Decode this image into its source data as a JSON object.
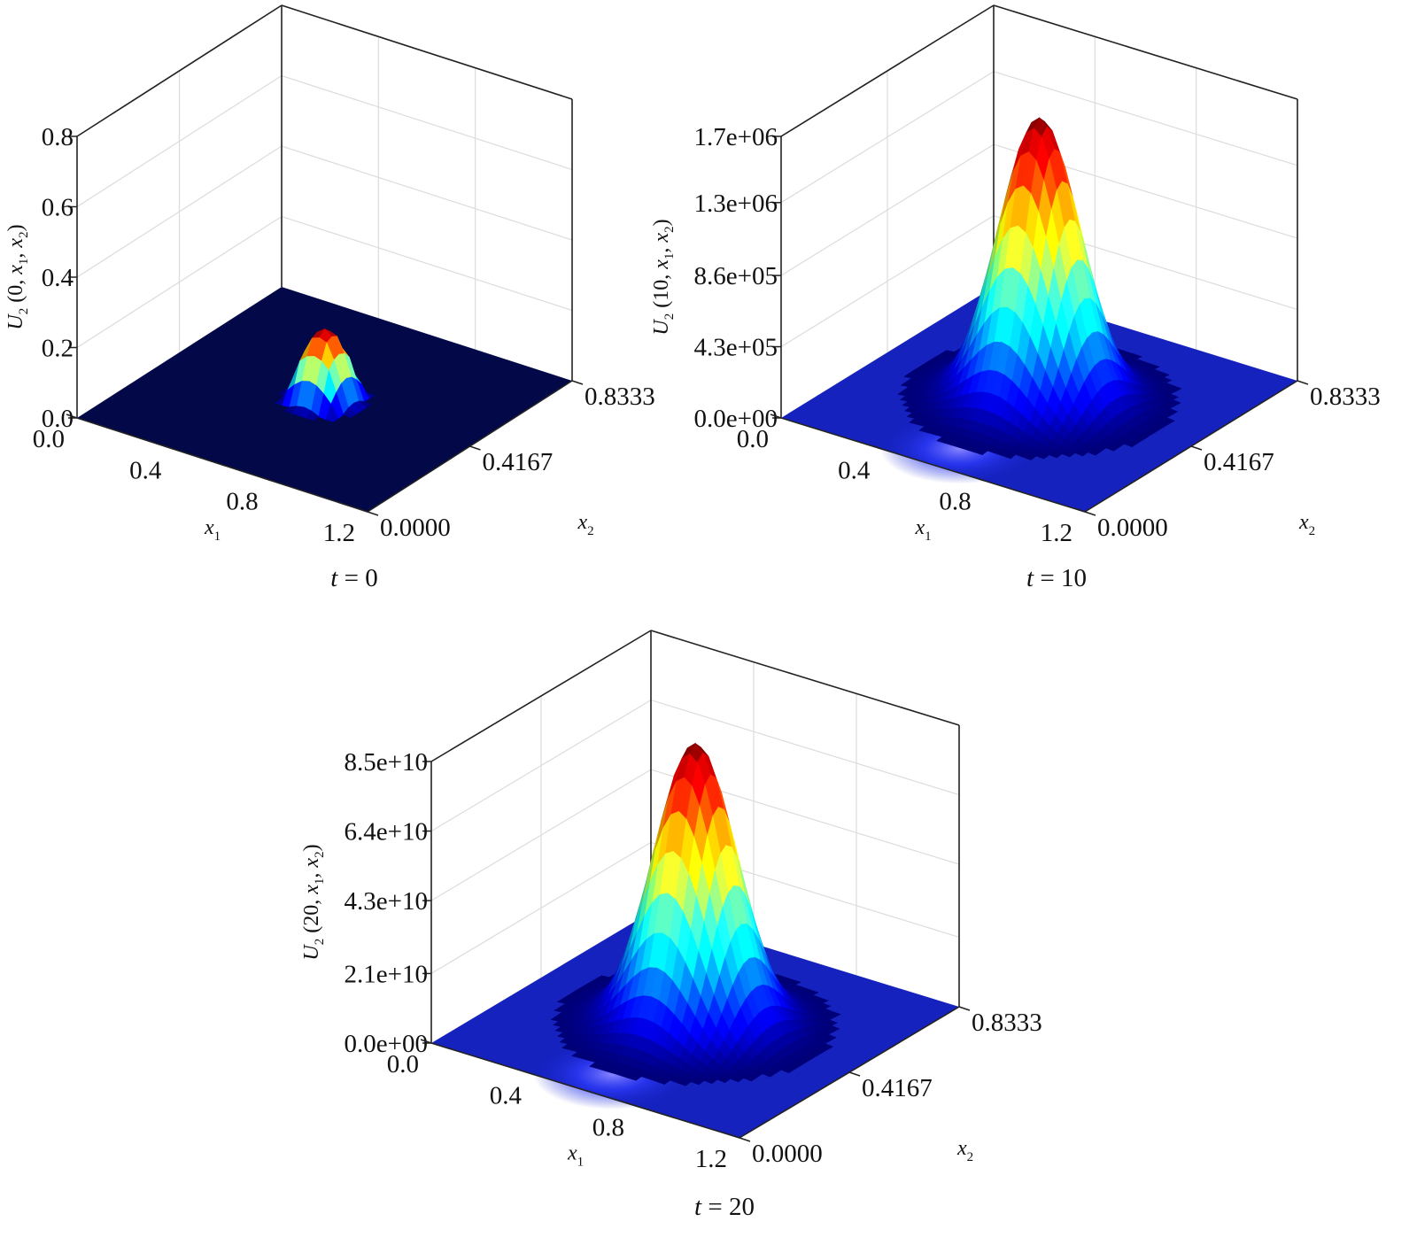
{
  "chart_data": [
    {
      "type": "surface3d",
      "caption": {
        "var": "t",
        "eq": " = ",
        "val": "0"
      },
      "zlabel": {
        "U": "U",
        "sub": "2",
        "args": " (0, ",
        "x": "x",
        "x1sub": "1",
        "comma": ", ",
        "x2sub": "2",
        "close": ")"
      },
      "xlabel": {
        "x": "x",
        "sub": "1"
      },
      "ylabel": {
        "x": "x",
        "sub": "2"
      },
      "x_ticks": [
        "0.0",
        "0.4",
        "0.8",
        "1.2"
      ],
      "x_tick_values": [
        0.0,
        0.4,
        0.8,
        1.2
      ],
      "y_ticks": [
        "0.0000",
        "0.4167",
        "0.8333"
      ],
      "y_tick_values": [
        0.0,
        0.4167,
        0.8333
      ],
      "z_ticks": [
        "0.0",
        "0.2",
        "0.4",
        "0.6",
        "0.8"
      ],
      "z_tick_values": [
        0.0,
        0.2,
        0.4,
        0.6,
        0.8
      ],
      "zlim": [
        0,
        0.8
      ],
      "colormap": "jet",
      "peak": {
        "x1": 0.6,
        "x2": 0.4167,
        "value": 0.2
      },
      "shape": "narrow bump"
    },
    {
      "type": "surface3d",
      "caption": {
        "var": "t",
        "eq": " = ",
        "val": "10"
      },
      "zlabel": {
        "U": "U",
        "sub": "2",
        "args": " (10, ",
        "x": "x",
        "x1sub": "1",
        "comma": ", ",
        "x2sub": "2",
        "close": ")"
      },
      "xlabel": {
        "x": "x",
        "sub": "1"
      },
      "ylabel": {
        "x": "x",
        "sub": "2"
      },
      "x_ticks": [
        "0.0",
        "0.4",
        "0.8",
        "1.2"
      ],
      "x_tick_values": [
        0.0,
        0.4,
        0.8,
        1.2
      ],
      "y_ticks": [
        "0.0000",
        "0.4167",
        "0.8333"
      ],
      "y_tick_values": [
        0.0,
        0.4167,
        0.8333
      ],
      "z_ticks": [
        "0.0e+00",
        "4.3e+05",
        "8.6e+05",
        "1.3e+06",
        "1.7e+06"
      ],
      "z_tick_values": [
        0,
        430000,
        860000,
        1300000,
        1700000
      ],
      "zlim": [
        0,
        1700000
      ],
      "colormap": "jet",
      "peak": {
        "x1": 0.6,
        "x2": 0.4167,
        "value": 1700000
      },
      "shape": "gaussian"
    },
    {
      "type": "surface3d",
      "caption": {
        "var": "t",
        "eq": " = ",
        "val": "20"
      },
      "zlabel": {
        "U": "U",
        "sub": "2",
        "args": " (20, ",
        "x": "x",
        "x1sub": "1",
        "comma": ", ",
        "x2sub": "2",
        "close": ")"
      },
      "xlabel": {
        "x": "x",
        "sub": "1"
      },
      "ylabel": {
        "x": "x",
        "sub": "2"
      },
      "x_ticks": [
        "0.0",
        "0.4",
        "0.8",
        "1.2"
      ],
      "x_tick_values": [
        0.0,
        0.4,
        0.8,
        1.2
      ],
      "y_ticks": [
        "0.0000",
        "0.4167",
        "0.8333"
      ],
      "y_tick_values": [
        0.0,
        0.4167,
        0.8333
      ],
      "z_ticks": [
        "0.0e+00",
        "2.1e+10",
        "4.3e+10",
        "6.4e+10",
        "8.5e+10"
      ],
      "z_tick_values": [
        0,
        21000000000,
        43000000000,
        64000000000,
        85000000000
      ],
      "zlim": [
        0,
        85000000000
      ],
      "colormap": "jet",
      "peak": {
        "x1": 0.6,
        "x2": 0.4167,
        "value": 85000000000
      },
      "shape": "gaussian"
    }
  ]
}
